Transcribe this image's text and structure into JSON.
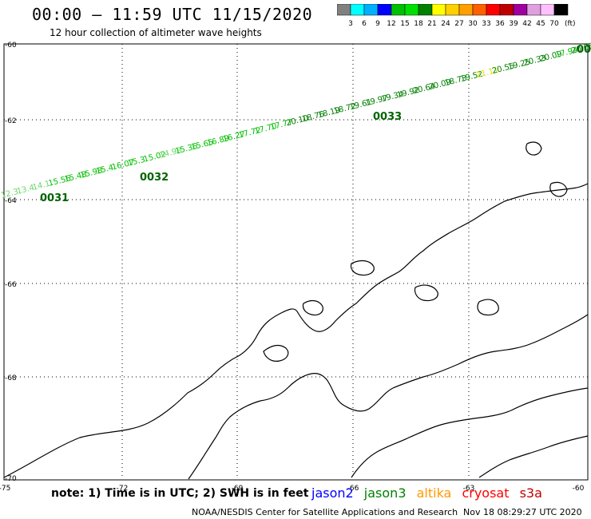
{
  "title": "00:00 – 11:59 UTC 11/15/2020",
  "subtitle": "12 hour collection of altimeter wave heights",
  "scale": {
    "colors": [
      "#808080",
      "#00ffff",
      "#00b0ff",
      "#0000ff",
      "#00c000",
      "#00e000",
      "#008000",
      "#ffff00",
      "#ffd000",
      "#ffa000",
      "#ff6000",
      "#ff0000",
      "#c00000",
      "#a000a0",
      "#e0a0e0",
      "#ffc0ff",
      "#000000"
    ],
    "labels": [
      "3",
      "6",
      "9",
      "12",
      "15",
      "18",
      "21",
      "24",
      "27",
      "30",
      "33",
      "36",
      "39",
      "42",
      "45",
      "70"
    ],
    "unit": "(ft)"
  },
  "axes": {
    "lat_labels": [
      "-60",
      "-62",
      "-64",
      "-66",
      "-68",
      "-70"
    ],
    "lon_labels": [
      "-75",
      "-72",
      "-69",
      "-66",
      "-63",
      "-60"
    ]
  },
  "track": {
    "pass_labels": [
      "0031",
      "0032",
      "0033",
      "00"
    ],
    "swh_values_ft": [
      "12.3",
      "13.4",
      "14.1",
      "15.56",
      "15.48",
      "15.98",
      "15.4",
      "16.07",
      "15.3",
      "15.02",
      "14.98",
      "15.36",
      "15.65",
      "16.89",
      "16.27",
      "17.72",
      "17.70",
      "17.77",
      "20.10",
      "18.76",
      "18.19",
      "18.72",
      "19.61",
      "19.97",
      "19.34",
      "19.92",
      "20.64",
      "20.09",
      "18.73",
      "19.52",
      "21.11",
      "20.55",
      "19.25",
      "20.33",
      "20.09",
      "17.94",
      "20.05",
      "18.0"
    ]
  },
  "footer": {
    "note": "note: 1) Time is in UTC; 2) SWH is in feet",
    "satellites": [
      {
        "name": "jason2",
        "color": "#0000ff"
      },
      {
        "name": "jason3",
        "color": "#008000"
      },
      {
        "name": "altika",
        "color": "#ff9900"
      },
      {
        "name": "cryosat",
        "color": "#ff0000"
      },
      {
        "name": "s3a",
        "color": "#c00000"
      }
    ],
    "credit": "NOAA/NESDIS Center for Satellite Applications and Research",
    "timestamp": "Nov 18 08:29:27 UTC 2020"
  }
}
